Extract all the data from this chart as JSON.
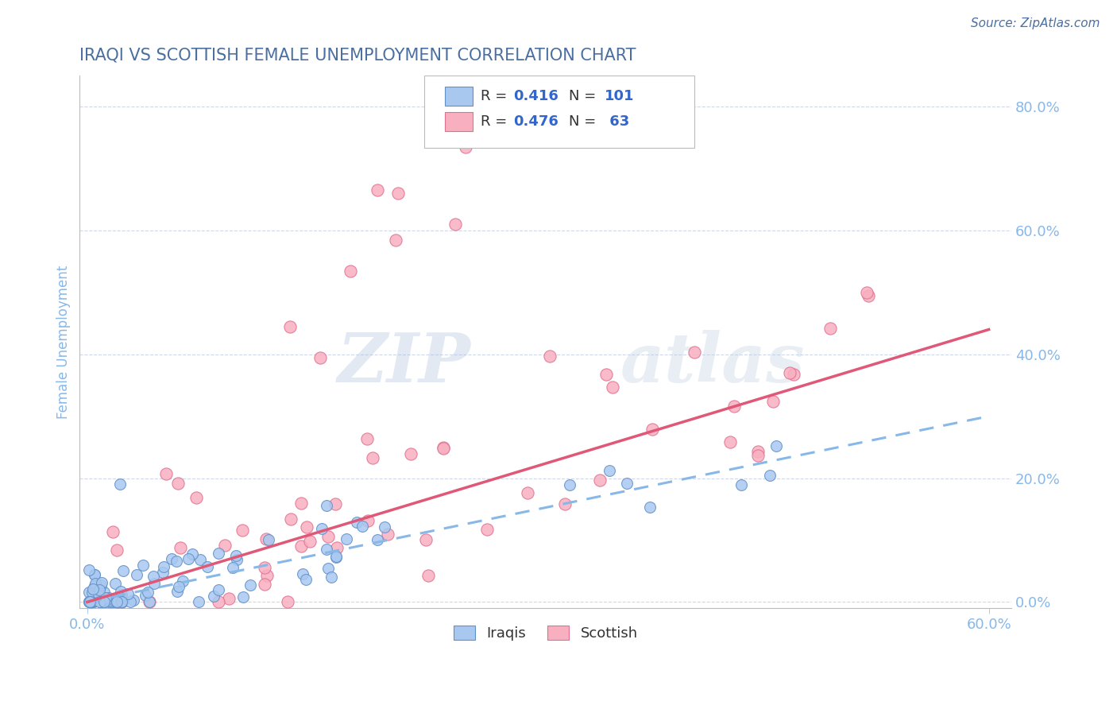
{
  "title": "IRAQI VS SCOTTISH FEMALE UNEMPLOYMENT CORRELATION CHART",
  "source_text": "Source: ZipAtlas.com",
  "ylabel": "Female Unemployment",
  "ylabel_right_ticks": [
    "0.0%",
    "20.0%",
    "40.0%",
    "60.0%",
    "80.0%"
  ],
  "ylabel_right_values": [
    0.0,
    0.2,
    0.4,
    0.6,
    0.8
  ],
  "xlim": [
    -0.005,
    0.615
  ],
  "ylim": [
    -0.01,
    0.85
  ],
  "xtick_positions": [
    0.0,
    0.6
  ],
  "xtick_labels": [
    "0.0%",
    "60.0%"
  ],
  "watermark_part1": "ZIP",
  "watermark_part2": "atlas",
  "iraqis_color_fill": "#a8c8f0",
  "iraqis_color_edge": "#6090c8",
  "scottish_color_fill": "#f8b0c0",
  "scottish_color_edge": "#e07090",
  "iraqis_line_color": "#88b8e8",
  "scottish_line_color": "#e05878",
  "grid_color": "#d0d8e8",
  "title_color": "#4a6fa0",
  "axis_color": "#88b8e8",
  "legend_R_color": "#333333",
  "legend_N_color": "#3366cc",
  "legend_val_color": "#3366cc",
  "iraqis_trend_x": [
    0.0,
    0.6
  ],
  "iraqis_trend_y": [
    0.0,
    0.3
  ],
  "scottish_trend_x": [
    0.0,
    0.6
  ],
  "scottish_trend_y": [
    0.0,
    0.44
  ],
  "iraqis_seed": 42,
  "scottish_seed": 123
}
